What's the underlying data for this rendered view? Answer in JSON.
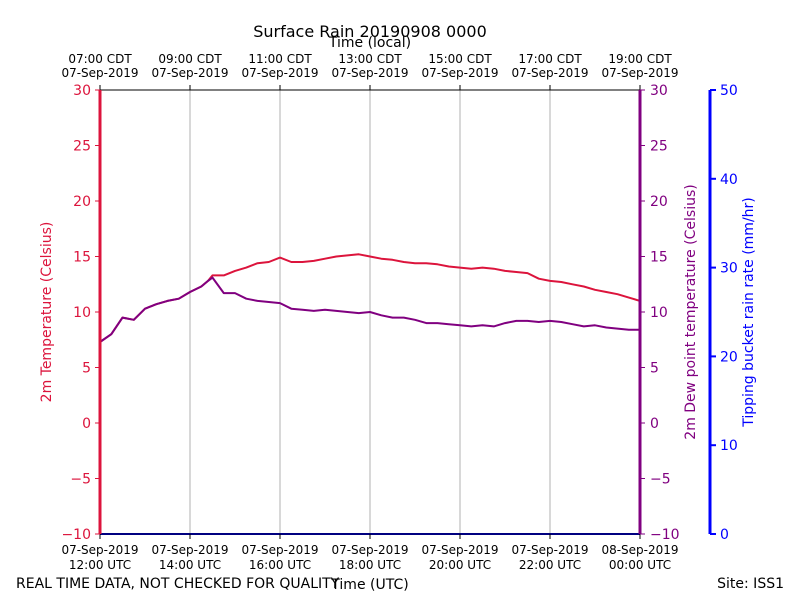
{
  "chart_data": {
    "type": "line",
    "title": "Surface Rain 20190908 0000",
    "top_xlabel": "Time (local)",
    "xlabel": "Time (UTC)",
    "ylabel_left": "2m Temperature (Celsius)",
    "ylabel_right": "2m Dew point temperature (Celsius)",
    "ylabel_far_right": "Tipping bucket rain rate (mm/hr)",
    "footer_left": "REAL TIME DATA, NOT CHECKED FOR QUALITY",
    "footer_right": "Site: ISS1",
    "x_range_hours_utc": [
      12,
      24
    ],
    "ylim_left": [
      -10,
      30
    ],
    "ylim_right": [
      -10,
      30
    ],
    "ylim_rain": [
      0,
      50
    ],
    "grid": "vertical",
    "bottom_ticks": [
      {
        "hour": 12,
        "line1": "07-Sep-2019",
        "line2": "12:00 UTC"
      },
      {
        "hour": 14,
        "line1": "07-Sep-2019",
        "line2": "14:00 UTC"
      },
      {
        "hour": 16,
        "line1": "07-Sep-2019",
        "line2": "16:00 UTC"
      },
      {
        "hour": 18,
        "line1": "07-Sep-2019",
        "line2": "18:00 UTC"
      },
      {
        "hour": 20,
        "line1": "07-Sep-2019",
        "line2": "20:00 UTC"
      },
      {
        "hour": 22,
        "line1": "07-Sep-2019",
        "line2": "22:00 UTC"
      },
      {
        "hour": 24,
        "line1": "08-Sep-2019",
        "line2": "00:00 UTC"
      }
    ],
    "top_ticks": [
      {
        "hour": 12,
        "line1": "07:00 CDT",
        "line2": "07-Sep-2019"
      },
      {
        "hour": 14,
        "line1": "09:00 CDT",
        "line2": "07-Sep-2019"
      },
      {
        "hour": 16,
        "line1": "11:00 CDT",
        "line2": "07-Sep-2019"
      },
      {
        "hour": 18,
        "line1": "13:00 CDT",
        "line2": "07-Sep-2019"
      },
      {
        "hour": 20,
        "line1": "15:00 CDT",
        "line2": "07-Sep-2019"
      },
      {
        "hour": 22,
        "line1": "17:00 CDT",
        "line2": "07-Sep-2019"
      },
      {
        "hour": 24,
        "line1": "19:00 CDT",
        "line2": "07-Sep-2019"
      }
    ],
    "y_ticks_left": [
      -10,
      -5,
      0,
      5,
      10,
      15,
      20,
      25,
      30
    ],
    "y_tick_labels_left": [
      "−10",
      "−5",
      "0",
      "5",
      "10",
      "15",
      "20",
      "25",
      "30"
    ],
    "y_ticks_rain": [
      0,
      10,
      20,
      30,
      40,
      50
    ],
    "colors": {
      "temperature": "#dc143c",
      "dewpoint": "#800080",
      "rain": "#0000ff",
      "grid": "#b0b0b0",
      "axis": "#000000"
    },
    "series": [
      {
        "key": "temperature",
        "x": [
          12.0,
          12.25,
          12.5,
          12.75,
          13.0,
          13.25,
          13.5,
          13.75,
          14.0,
          14.25,
          14.4,
          14.5,
          14.75,
          15.0,
          15.25,
          15.5,
          15.75,
          16.0,
          16.25,
          16.5,
          16.75,
          17.0,
          17.25,
          17.5,
          17.75,
          18.0,
          18.25,
          18.5,
          18.75,
          19.0,
          19.25,
          19.5,
          19.75,
          20.0,
          20.25,
          20.5,
          20.75,
          21.0,
          21.25,
          21.5,
          21.75,
          22.0,
          22.25,
          22.5,
          22.75,
          23.0,
          23.25,
          23.5,
          23.75,
          24.0
        ],
        "values": [
          7.3,
          8.0,
          9.5,
          9.3,
          10.3,
          10.7,
          11.0,
          11.2,
          11.8,
          12.3,
          12.8,
          13.3,
          13.3,
          13.7,
          14.0,
          14.4,
          14.5,
          14.9,
          14.5,
          14.5,
          14.6,
          14.8,
          15.0,
          15.1,
          15.2,
          15.0,
          14.8,
          14.7,
          14.5,
          14.4,
          14.4,
          14.3,
          14.1,
          14.0,
          13.9,
          14.0,
          13.9,
          13.7,
          13.6,
          13.5,
          13.0,
          12.8,
          12.7,
          12.5,
          12.3,
          12.0,
          11.8,
          11.6,
          11.3,
          11.0
        ]
      },
      {
        "key": "dewpoint",
        "x": [
          12.0,
          12.25,
          12.5,
          12.75,
          13.0,
          13.25,
          13.5,
          13.75,
          14.0,
          14.25,
          14.4,
          14.5,
          14.75,
          15.0,
          15.25,
          15.5,
          15.75,
          16.0,
          16.25,
          16.5,
          16.75,
          17.0,
          17.25,
          17.5,
          17.75,
          18.0,
          18.25,
          18.5,
          18.75,
          19.0,
          19.25,
          19.5,
          19.75,
          20.0,
          20.25,
          20.5,
          20.75,
          21.0,
          21.25,
          21.5,
          21.75,
          22.0,
          22.25,
          22.5,
          22.75,
          23.0,
          23.25,
          23.5,
          23.75,
          24.0
        ],
        "values": [
          7.3,
          8.0,
          9.5,
          9.3,
          10.3,
          10.7,
          11.0,
          11.2,
          11.8,
          12.3,
          12.8,
          13.1,
          11.7,
          11.7,
          11.2,
          11.0,
          10.9,
          10.8,
          10.3,
          10.2,
          10.1,
          10.2,
          10.1,
          10.0,
          9.9,
          10.0,
          9.7,
          9.5,
          9.5,
          9.3,
          9.0,
          9.0,
          8.9,
          8.8,
          8.7,
          8.8,
          8.7,
          9.0,
          9.2,
          9.2,
          9.1,
          9.2,
          9.1,
          8.9,
          8.7,
          8.8,
          8.6,
          8.5,
          8.4,
          8.4
        ]
      },
      {
        "key": "rain",
        "x": [
          12.0,
          24.0
        ],
        "values": [
          0,
          0
        ]
      }
    ]
  }
}
